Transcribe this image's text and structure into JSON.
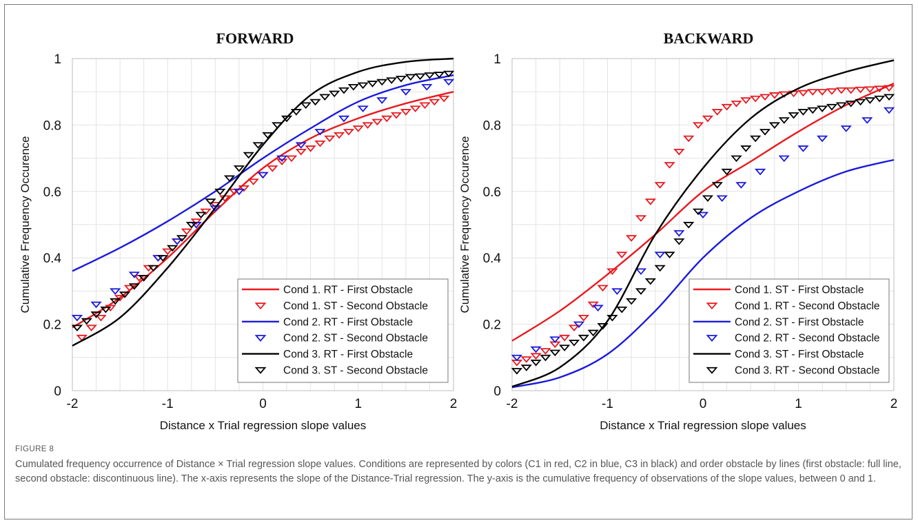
{
  "figure_label": "FIGURE 8",
  "caption": "Cumulated frequency occurrence of Distance × Trial regression slope values. Conditions are represented by colors (C1 in red, C2 in blue, C3 in black) and order obstacle by lines (first obstacle: full line, second obstacle: discontinuous line). The x-axis represents the slope of the Distance-Trial regression. The y-axis is the cumulative frequency of observations of the slope values, between 0 and 1.",
  "colors": {
    "red": "#e8191f",
    "blue": "#1a1adc",
    "black": "#000000"
  },
  "chart_data": [
    {
      "type": "line",
      "title": "FORWARD",
      "xlabel": "Distance x Trial regression slope values",
      "ylabel": "Cumulative Frequency Occurence",
      "xlim": [
        -2,
        2
      ],
      "ylim": [
        0,
        1
      ],
      "xticks": [
        "-2",
        "-1",
        "0",
        "1",
        "2"
      ],
      "yticks": [
        "0",
        "0.2",
        "0.4",
        "0.6",
        "0.8",
        "1"
      ],
      "grid": true,
      "legend_position": "bottom-right",
      "series": [
        {
          "name": "Cond 1. RT - First Obstacle",
          "style": "line",
          "color": "red",
          "x": [
            -2,
            -1.5,
            -1,
            -0.5,
            0,
            0.5,
            1,
            1.5,
            2
          ],
          "y": [
            0.19,
            0.28,
            0.4,
            0.54,
            0.67,
            0.76,
            0.82,
            0.865,
            0.9
          ]
        },
        {
          "name": "Cond 1. ST - Second Obstacle",
          "style": "marker",
          "color": "red",
          "x": [
            -1.9,
            -1.8,
            -1.7,
            -1.6,
            -1.5,
            -1.4,
            -1.3,
            -1.2,
            -1.1,
            -1.0,
            -0.9,
            -0.8,
            -0.7,
            -0.6,
            -0.5,
            -0.4,
            -0.3,
            -0.2,
            -0.1,
            0,
            0.1,
            0.2,
            0.3,
            0.4,
            0.5,
            0.6,
            0.7,
            0.8,
            0.9,
            1.0,
            1.1,
            1.2,
            1.3,
            1.4,
            1.5,
            1.6,
            1.7,
            1.8,
            1.9
          ],
          "y": [
            0.16,
            0.19,
            0.22,
            0.25,
            0.28,
            0.31,
            0.34,
            0.37,
            0.4,
            0.42,
            0.45,
            0.48,
            0.51,
            0.54,
            0.56,
            0.58,
            0.6,
            0.61,
            0.63,
            0.65,
            0.67,
            0.69,
            0.7,
            0.72,
            0.73,
            0.745,
            0.76,
            0.77,
            0.78,
            0.79,
            0.8,
            0.81,
            0.82,
            0.83,
            0.84,
            0.85,
            0.86,
            0.87,
            0.88
          ]
        },
        {
          "name": "Cond 2. RT - First Obstacle",
          "style": "line",
          "color": "blue",
          "x": [
            -2,
            -1.5,
            -1,
            -0.5,
            0,
            0.5,
            1,
            1.5,
            2
          ],
          "y": [
            0.36,
            0.43,
            0.51,
            0.6,
            0.7,
            0.79,
            0.87,
            0.92,
            0.95
          ]
        },
        {
          "name": "Cond 2. ST - Second Obstacle",
          "style": "marker",
          "color": "blue",
          "x": [
            -1.95,
            -1.75,
            -1.55,
            -1.35,
            -1.1,
            -0.9,
            -0.7,
            -0.5,
            -0.25,
            0,
            0.2,
            0.4,
            0.6,
            0.85,
            1.05,
            1.25,
            1.5,
            1.72,
            1.95
          ],
          "y": [
            0.22,
            0.26,
            0.3,
            0.35,
            0.4,
            0.45,
            0.5,
            0.55,
            0.6,
            0.65,
            0.7,
            0.74,
            0.78,
            0.82,
            0.85,
            0.875,
            0.9,
            0.915,
            0.93
          ]
        },
        {
          "name": "Cond 3. RT - First Obstacle",
          "style": "line",
          "color": "black",
          "x": [
            -2,
            -1.5,
            -1,
            -0.5,
            0,
            0.5,
            1,
            1.5,
            2
          ],
          "y": [
            0.135,
            0.22,
            0.37,
            0.55,
            0.74,
            0.89,
            0.96,
            0.99,
            1.0
          ]
        },
        {
          "name": "Cond 3. ST - Second Obstacle",
          "style": "marker",
          "color": "black",
          "x": [
            -1.95,
            -1.85,
            -1.75,
            -1.65,
            -1.55,
            -1.45,
            -1.35,
            -1.25,
            -1.15,
            -1.05,
            -0.95,
            -0.85,
            -0.75,
            -0.65,
            -0.55,
            -0.45,
            -0.35,
            -0.25,
            -0.15,
            -0.05,
            0.05,
            0.15,
            0.25,
            0.35,
            0.45,
            0.55,
            0.65,
            0.75,
            0.85,
            0.95,
            1.05,
            1.15,
            1.25,
            1.35,
            1.45,
            1.55,
            1.65,
            1.75,
            1.85,
            1.95
          ],
          "y": [
            0.19,
            0.21,
            0.23,
            0.245,
            0.27,
            0.29,
            0.315,
            0.34,
            0.37,
            0.4,
            0.43,
            0.46,
            0.5,
            0.53,
            0.57,
            0.6,
            0.64,
            0.67,
            0.71,
            0.74,
            0.77,
            0.8,
            0.82,
            0.84,
            0.86,
            0.87,
            0.885,
            0.895,
            0.905,
            0.915,
            0.92,
            0.925,
            0.93,
            0.935,
            0.94,
            0.945,
            0.947,
            0.95,
            0.952,
            0.955
          ]
        }
      ]
    },
    {
      "type": "line",
      "title": "BACKWARD",
      "xlabel": "Distance x Trial regression slope values",
      "ylabel": "Cumulative Frequency Occurence",
      "xlim": [
        -2,
        2
      ],
      "ylim": [
        0,
        1
      ],
      "xticks": [
        "-2",
        "-1",
        "0",
        "1",
        "2"
      ],
      "yticks": [
        "0",
        "0.2",
        "0.4",
        "0.6",
        "0.8",
        "1"
      ],
      "grid": true,
      "legend_position": "bottom-right",
      "series": [
        {
          "name": "Cond 1. ST - First Obstacle",
          "style": "line",
          "color": "red",
          "x": [
            -2,
            -1.5,
            -1,
            -0.5,
            0,
            0.5,
            1,
            1.5,
            2
          ],
          "y": [
            0.15,
            0.24,
            0.35,
            0.47,
            0.6,
            0.69,
            0.78,
            0.86,
            0.925
          ]
        },
        {
          "name": "Cond 1. RT - Second Obstacle",
          "style": "marker",
          "color": "red",
          "x": [
            -1.95,
            -1.85,
            -1.75,
            -1.65,
            -1.55,
            -1.45,
            -1.35,
            -1.25,
            -1.15,
            -1.05,
            -0.95,
            -0.85,
            -0.75,
            -0.65,
            -0.55,
            -0.45,
            -0.35,
            -0.25,
            -0.15,
            -0.05,
            0.05,
            0.15,
            0.25,
            0.35,
            0.45,
            0.55,
            0.65,
            0.75,
            0.85,
            0.95,
            1.05,
            1.15,
            1.25,
            1.35,
            1.45,
            1.55,
            1.65,
            1.75,
            1.85,
            1.95
          ],
          "y": [
            0.085,
            0.095,
            0.105,
            0.12,
            0.14,
            0.16,
            0.19,
            0.22,
            0.26,
            0.31,
            0.36,
            0.41,
            0.46,
            0.52,
            0.57,
            0.62,
            0.68,
            0.72,
            0.76,
            0.8,
            0.82,
            0.84,
            0.855,
            0.865,
            0.875,
            0.88,
            0.885,
            0.89,
            0.893,
            0.895,
            0.897,
            0.9,
            0.9,
            0.902,
            0.905,
            0.905,
            0.907,
            0.908,
            0.91,
            0.912
          ]
        },
        {
          "name": "Cond 2. ST - First Obstacle",
          "style": "line",
          "color": "blue",
          "x": [
            -2,
            -1.5,
            -1,
            -0.5,
            0,
            0.5,
            1,
            1.5,
            2
          ],
          "y": [
            0.01,
            0.04,
            0.11,
            0.24,
            0.4,
            0.52,
            0.6,
            0.66,
            0.695
          ]
        },
        {
          "name": "Cond 2. RT - Second Obstacle",
          "style": "marker",
          "color": "blue",
          "x": [
            -1.95,
            -1.75,
            -1.55,
            -1.3,
            -1.1,
            -0.9,
            -0.65,
            -0.45,
            -0.25,
            0,
            0.2,
            0.4,
            0.6,
            0.85,
            1.05,
            1.25,
            1.5,
            1.72,
            1.95
          ],
          "y": [
            0.1,
            0.125,
            0.155,
            0.2,
            0.25,
            0.3,
            0.36,
            0.41,
            0.475,
            0.53,
            0.58,
            0.62,
            0.66,
            0.7,
            0.73,
            0.76,
            0.79,
            0.815,
            0.845
          ]
        },
        {
          "name": "Cond 3. ST - First Obstacle",
          "style": "line",
          "color": "black",
          "x": [
            -2,
            -1.5,
            -1,
            -0.5,
            0,
            0.5,
            1,
            1.5,
            2
          ],
          "y": [
            0.012,
            0.07,
            0.21,
            0.47,
            0.67,
            0.82,
            0.91,
            0.96,
            0.995
          ]
        },
        {
          "name": "Cond 3. RT - Second Obstacle",
          "style": "marker",
          "color": "black",
          "x": [
            -1.95,
            -1.85,
            -1.75,
            -1.65,
            -1.55,
            -1.45,
            -1.35,
            -1.25,
            -1.15,
            -1.05,
            -0.95,
            -0.85,
            -0.75,
            -0.65,
            -0.55,
            -0.45,
            -0.35,
            -0.25,
            -0.15,
            -0.05,
            0.05,
            0.15,
            0.25,
            0.35,
            0.45,
            0.55,
            0.65,
            0.75,
            0.85,
            0.95,
            1.05,
            1.15,
            1.25,
            1.35,
            1.45,
            1.55,
            1.65,
            1.75,
            1.85,
            1.95
          ],
          "y": [
            0.06,
            0.07,
            0.085,
            0.1,
            0.115,
            0.13,
            0.145,
            0.16,
            0.175,
            0.195,
            0.22,
            0.245,
            0.27,
            0.3,
            0.33,
            0.37,
            0.41,
            0.45,
            0.5,
            0.54,
            0.58,
            0.62,
            0.66,
            0.7,
            0.73,
            0.76,
            0.78,
            0.8,
            0.815,
            0.83,
            0.84,
            0.845,
            0.85,
            0.855,
            0.86,
            0.865,
            0.87,
            0.875,
            0.88,
            0.885
          ]
        }
      ]
    }
  ]
}
